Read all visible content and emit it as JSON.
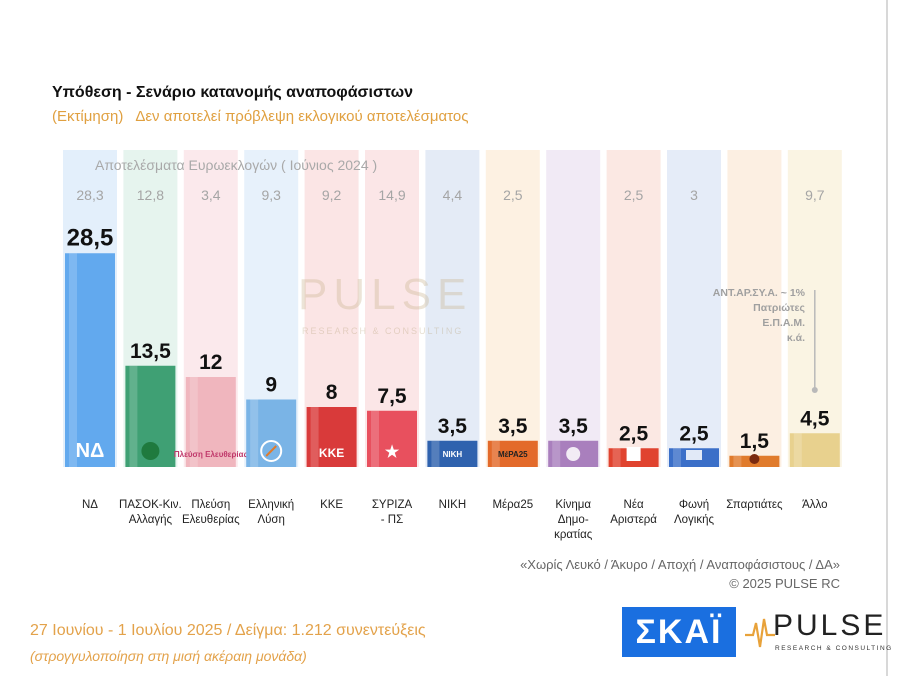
{
  "header": {
    "title": "Υπόθεση - Σενάριο κατανομής αναποφάσιστων",
    "subtitle_estimate": "(Εκτίμηση)",
    "subtitle_note": "Δεν αποτελεί πρόβλεψη εκλογικού αποτελέσματος"
  },
  "previous_results_label": "Αποτελέσματα Ευρωεκλογών  ( Ιούνιος 2024 )",
  "watermark": {
    "name": "PULSE",
    "tagline": "RESEARCH & CONSULTING"
  },
  "chart_data": {
    "type": "bar",
    "title": "Υπόθεση - Σενάριο κατανομής αναποφάσιστων",
    "categories": [
      "ΝΔ",
      "ΠΑΣΟΚ-Κιν. Αλλαγής",
      "Πλεύση Ελευθερίας",
      "Ελληνική Λύση",
      "ΚΚΕ",
      "ΣΥΡΙΖΑ - ΠΣ",
      "ΝΙΚΗ",
      "Μέρα25",
      "Κίνημα Δημο-κρατίας",
      "Νέα Αριστερά",
      "Φωνή Λογικής",
      "Σπαρτιάτες",
      "Άλλο"
    ],
    "category_lines": [
      [
        "ΝΔ"
      ],
      [
        "ΠΑΣΟΚ-Κιν.",
        "Αλλαγής"
      ],
      [
        "Πλεύση",
        "Ελευθερίας"
      ],
      [
        "Ελληνική",
        "Λύση"
      ],
      [
        "ΚΚΕ"
      ],
      [
        "ΣΥΡΙΖΑ",
        "- ΠΣ"
      ],
      [
        "ΝΙΚΗ"
      ],
      [
        "Μέρα25"
      ],
      [
        "Κίνημα",
        "Δημο-",
        "κρατίας"
      ],
      [
        "Νέα",
        "Αριστερά"
      ],
      [
        "Φωνή",
        "Λογικής"
      ],
      [
        "Σπαρτιάτες"
      ],
      [
        "Άλλο"
      ]
    ],
    "values": [
      28.5,
      13.5,
      12,
      9,
      8,
      7.5,
      3.5,
      3.5,
      3.5,
      2.5,
      2.5,
      1.5,
      4.5
    ],
    "value_labels": [
      "28,5",
      "13,5",
      "12",
      "9",
      "8",
      "7,5",
      "3,5",
      "3,5",
      "3,5",
      "2,5",
      "2,5",
      "1,5",
      "4,5"
    ],
    "previous_values": [
      28.3,
      12.8,
      3.4,
      9.3,
      9.2,
      14.9,
      4.4,
      2.5,
      null,
      2.5,
      3,
      null,
      9.7
    ],
    "previous_labels": [
      "28,3",
      "12,8",
      "3,4",
      "9,3",
      "9,2",
      "14,9",
      "4,4",
      "2,5",
      "",
      "2,5",
      "3",
      "",
      "9,7"
    ],
    "colors": [
      "#62a9ee",
      "#3fa074",
      "#f0b6be",
      "#7ab4e6",
      "#d93a3a",
      "#e8505e",
      "#2f62ae",
      "#e36a2a",
      "#a97fbd",
      "#e0432f",
      "#3b6fc8",
      "#e07b2c",
      "#e8d18e"
    ],
    "bg_colors": [
      "#e3effb",
      "#e6f4ee",
      "#fbe9ec",
      "#e7f1fb",
      "#fbe5e5",
      "#fbe6e7",
      "#e4ebf6",
      "#fdf1e2",
      "#f1eaf5",
      "#fbe8e3",
      "#e5ecf8",
      "#fcefe2",
      "#faf4e3"
    ],
    "logos": [
      "ΝΔ",
      "",
      "Πλεύση Ελευθερίας",
      "",
      "ΚΚΕ",
      "★",
      "ΝΙΚΗ",
      "ΜέΡΑ25",
      "",
      "",
      "",
      "",
      ""
    ],
    "icons": [
      "nd-logo-icon",
      "pasok-sun-icon",
      "plefsi-ship-icon",
      "compass-icon",
      "kke-logo-icon",
      "syriza-star-icon",
      "niki-logo-icon",
      "mera25-logo-icon",
      "flower-icon",
      "nea-aristera-icon",
      "foni-logikis-icon",
      "spartan-helmet-icon",
      ""
    ],
    "ylim": [
      0,
      30
    ],
    "legend": "none",
    "grid": false
  },
  "other_note": [
    "ΑΝΤ.ΑΡ.ΣΥ.Α. ~ 1%",
    "Πατριώτες",
    "Ε.Π.Α.Μ.",
    "κ.ά."
  ],
  "footnote": {
    "line1": "«Χωρίς Λευκό / Άκυρο / Αποχή / Αναποφάσιστους / ΔΑ»",
    "line2": "©  2025  PULSE RC"
  },
  "footer": {
    "date_sample": "27 Ιουνίου - 1 Ιουλίου 2025  /  Δείγμα:  1.212 συνεντεύξεις",
    "rounding": "(στρογγυλοποίηση στη μισή ακέραιη μονάδα)",
    "skai_logo": "ΣΚΑΪ",
    "pulse_logo": "PULSE",
    "pulse_tagline": "RESEARCH & CONSULTING"
  }
}
